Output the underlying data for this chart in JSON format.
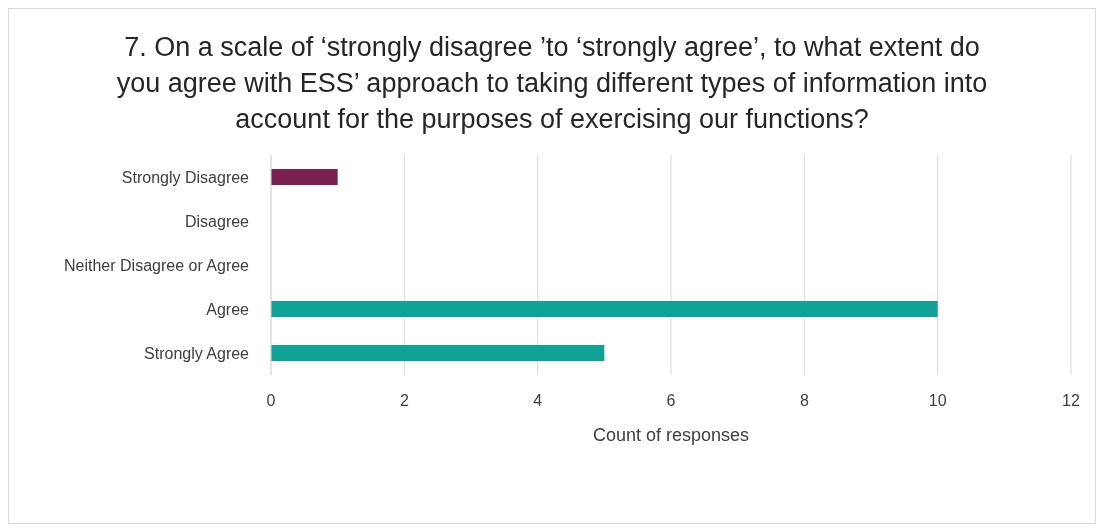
{
  "chart_data": {
    "type": "bar",
    "orientation": "horizontal",
    "title": "7. On a scale of ‘strongly disagree ’to ‘strongly agree’, to what extent do you agree with ESS’ approach to taking different types of information into account for the purposes of exercising our functions?",
    "xlabel": "Count of responses",
    "categories": [
      "Strongly Disagree",
      "Disagree",
      "Neither Disagree or Agree",
      "Agree",
      "Strongly Agree"
    ],
    "values": [
      1,
      0,
      0,
      10,
      5
    ],
    "colors": [
      "#7b2152",
      "#0fa397",
      "#0fa397",
      "#0fa397",
      "#0fa397"
    ],
    "xlim": [
      0,
      12
    ],
    "xticks": [
      0,
      2,
      4,
      6,
      8,
      10,
      12
    ],
    "grid": "x"
  }
}
